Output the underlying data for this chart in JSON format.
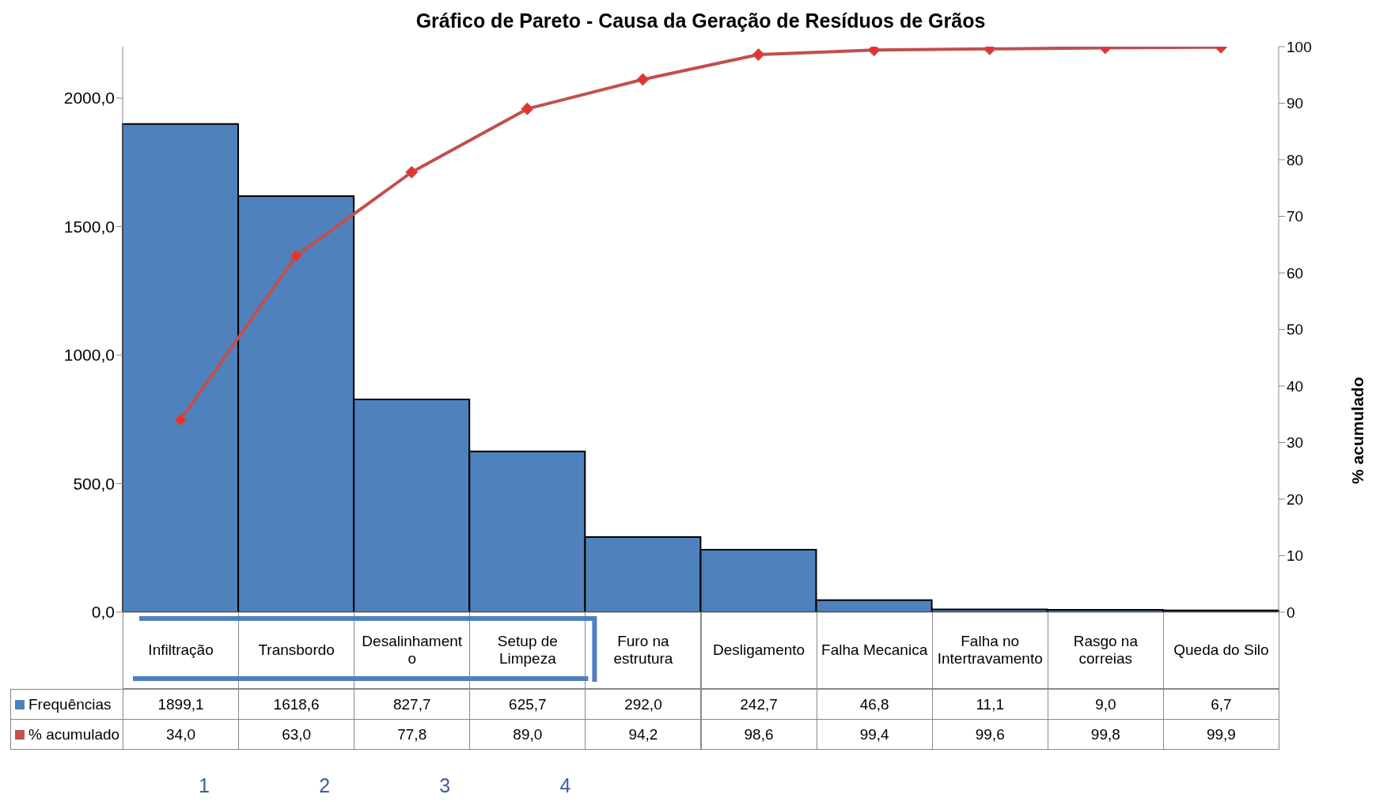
{
  "chart_data": {
    "type": "bar",
    "title": "Gráfico de Pareto - Causa da Geração de Resíduos de Grãos",
    "y2label": "% acumulado",
    "categories": [
      "Infiltração",
      "Transbordo",
      "Desalinhamento",
      "Setup de Limpeza",
      "Furo na estrutura",
      "Desligamento",
      "Falha Mecanica",
      "Falha no Intertravamento",
      "Rasgo na correias",
      "Queda do Silo"
    ],
    "series": [
      {
        "name": "Frequências",
        "color": "#4f81bd",
        "values": [
          1899.1,
          1618.6,
          827.7,
          625.7,
          292.0,
          242.7,
          46.8,
          11.1,
          9.0,
          6.7
        ],
        "value_labels": [
          "1899,1",
          "1618,6",
          "827,7",
          "625,7",
          "292,0",
          "242,7",
          "46,8",
          "11,1",
          "9,0",
          "6,7"
        ]
      },
      {
        "name": "% acumulado",
        "type": "line",
        "axis": "y2",
        "color": "#c0504d",
        "values": [
          34.0,
          63.0,
          77.8,
          89.0,
          94.2,
          98.6,
          99.4,
          99.6,
          99.8,
          99.9
        ],
        "value_labels": [
          "34,0",
          "63,0",
          "77,8",
          "89,0",
          "94,2",
          "98,6",
          "99,4",
          "99,6",
          "99,8",
          "99,9"
        ]
      }
    ],
    "ylim": [
      0,
      2200
    ],
    "yticks": [
      {
        "value": 0,
        "label": "0,0"
      },
      {
        "value": 500,
        "label": "500,0"
      },
      {
        "value": 1000,
        "label": "1000,0"
      },
      {
        "value": 1500,
        "label": "1500,0"
      },
      {
        "value": 2000,
        "label": "2000,0"
      }
    ],
    "y2lim": [
      0,
      100
    ],
    "y2ticks": [
      0,
      10,
      20,
      30,
      40,
      50,
      60,
      70,
      80,
      90,
      100
    ],
    "marker": "diamond",
    "grid": false,
    "legend": "bottom left",
    "annotations": [
      "1",
      "2",
      "3",
      "4"
    ]
  }
}
